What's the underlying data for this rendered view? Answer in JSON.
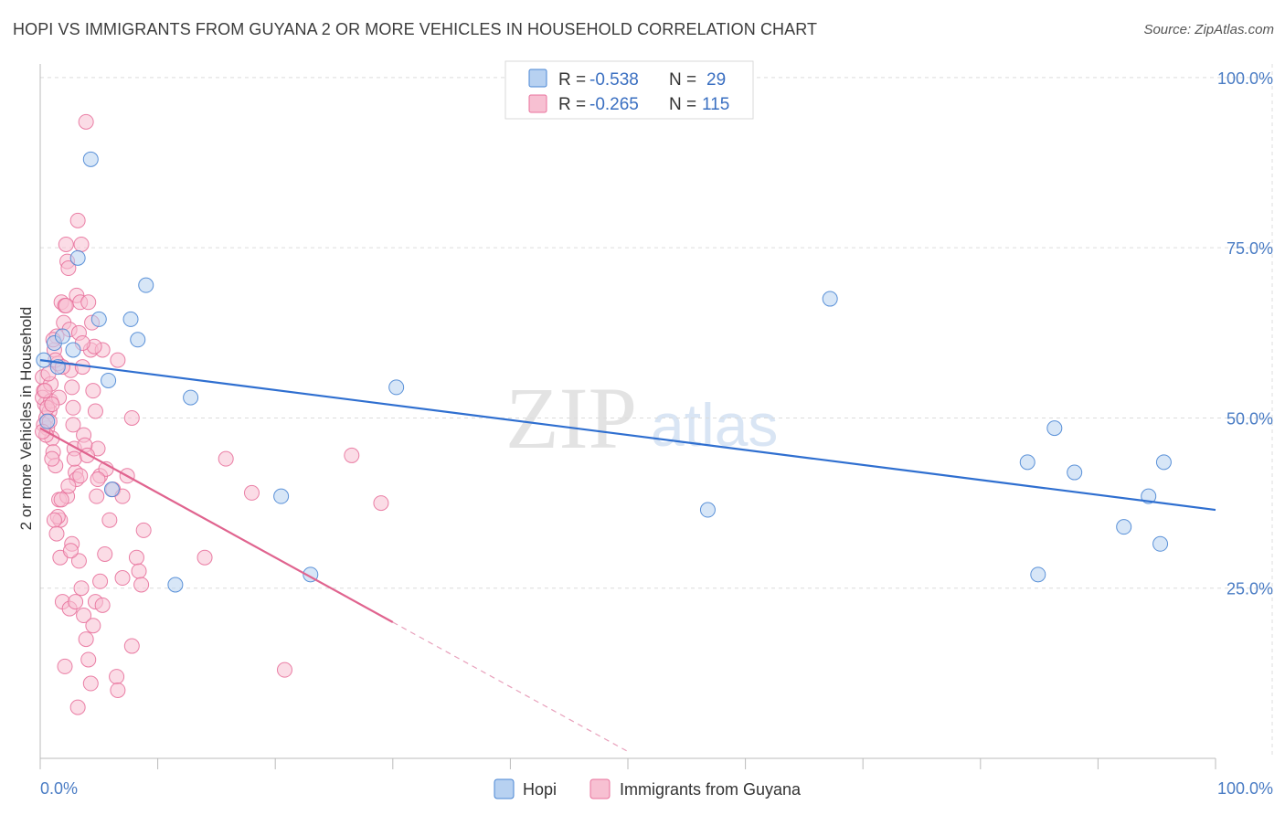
{
  "title": "HOPI VS IMMIGRANTS FROM GUYANA 2 OR MORE VEHICLES IN HOUSEHOLD CORRELATION CHART",
  "source": "Source: ZipAtlas.com",
  "watermark": {
    "zip": "ZIP",
    "atlas": "atlas"
  },
  "chart_data": {
    "type": "scatter",
    "title": "HOPI VS IMMIGRANTS FROM GUYANA 2 OR MORE VEHICLES IN HOUSEHOLD CORRELATION CHART",
    "xlabel": "",
    "ylabel": "2 or more Vehicles in Household",
    "xlim": [
      0,
      100
    ],
    "ylim": [
      0,
      102
    ],
    "x_tick_labels": {
      "left": "0.0%",
      "right": "100.0%"
    },
    "y_ticks": [
      {
        "value": 25,
        "label": "25.0%"
      },
      {
        "value": 50,
        "label": "50.0%"
      },
      {
        "value": 75,
        "label": "75.0%"
      },
      {
        "value": 100,
        "label": "100.0%"
      }
    ],
    "grid": true,
    "legend": {
      "position": "top-center",
      "entries": [
        {
          "r_label": "R =",
          "r": "-0.538",
          "n_label": "N =",
          "n": "29"
        },
        {
          "r_label": "R =",
          "r": "-0.265",
          "n_label": "N =",
          "n": "115"
        }
      ]
    },
    "series": [
      {
        "name": "Hopi",
        "color": "#4a86d4",
        "fill": "#b7d1f1",
        "points": [
          [
            0.3,
            58.5
          ],
          [
            1.2,
            61
          ],
          [
            1.5,
            57.5
          ],
          [
            2.8,
            60
          ],
          [
            3.2,
            73.5
          ],
          [
            4.3,
            88
          ],
          [
            5.0,
            64.5
          ],
          [
            5.8,
            55.5
          ],
          [
            6.1,
            39.5
          ],
          [
            7.7,
            64.5
          ],
          [
            8.3,
            61.5
          ],
          [
            9.0,
            69.5
          ],
          [
            11.5,
            25.5
          ],
          [
            12.8,
            53
          ],
          [
            20.5,
            38.5
          ],
          [
            23.0,
            27
          ],
          [
            30.3,
            54.5
          ],
          [
            56.8,
            36.5
          ],
          [
            67.2,
            67.5
          ],
          [
            84.0,
            43.5
          ],
          [
            84.9,
            27
          ],
          [
            86.3,
            48.5
          ],
          [
            88.0,
            42
          ],
          [
            92.2,
            34
          ],
          [
            94.3,
            38.5
          ],
          [
            95.3,
            31.5
          ],
          [
            95.6,
            43.5
          ],
          [
            1.9,
            62
          ],
          [
            0.6,
            49.5
          ]
        ],
        "trend": {
          "x0": 0,
          "y0": 58.5,
          "x1": 100,
          "y1": 36.5
        }
      },
      {
        "name": "Immigrants from Guyana",
        "color": "#e8729c",
        "fill": "#f7c0d2",
        "points": [
          [
            0.2,
            56
          ],
          [
            0.3,
            54
          ],
          [
            0.4,
            52
          ],
          [
            0.5,
            50
          ],
          [
            0.6,
            48.5
          ],
          [
            0.2,
            53
          ],
          [
            0.8,
            51
          ],
          [
            0.9,
            55
          ],
          [
            1.0,
            47
          ],
          [
            1.1,
            45
          ],
          [
            1.2,
            60
          ],
          [
            1.3,
            43
          ],
          [
            1.4,
            62
          ],
          [
            1.5,
            58
          ],
          [
            1.6,
            38
          ],
          [
            1.7,
            35
          ],
          [
            1.8,
            67
          ],
          [
            2.0,
            64
          ],
          [
            2.1,
            66.5
          ],
          [
            2.2,
            75.5
          ],
          [
            2.3,
            73
          ],
          [
            2.4,
            72
          ],
          [
            2.5,
            63
          ],
          [
            2.6,
            57
          ],
          [
            2.7,
            54.5
          ],
          [
            2.8,
            49
          ],
          [
            2.9,
            45.5
          ],
          [
            3.0,
            42
          ],
          [
            3.1,
            68
          ],
          [
            3.2,
            79
          ],
          [
            3.3,
            62.5
          ],
          [
            3.4,
            67
          ],
          [
            3.5,
            75.5
          ],
          [
            3.6,
            57.5
          ],
          [
            3.7,
            47.5
          ],
          [
            3.9,
            93.5
          ],
          [
            4.1,
            67
          ],
          [
            4.3,
            60
          ],
          [
            4.5,
            54
          ],
          [
            4.7,
            51
          ],
          [
            4.9,
            45.5
          ],
          [
            5.1,
            41.5
          ],
          [
            5.3,
            60
          ],
          [
            5.6,
            42.5
          ],
          [
            5.9,
            35
          ],
          [
            6.2,
            39.5
          ],
          [
            6.6,
            58.5
          ],
          [
            7.0,
            38.5
          ],
          [
            7.4,
            41.5
          ],
          [
            7.8,
            50
          ],
          [
            8.2,
            29.5
          ],
          [
            8.4,
            27.5
          ],
          [
            8.6,
            25.5
          ],
          [
            8.8,
            33.5
          ],
          [
            0.3,
            49
          ],
          [
            0.5,
            47.5
          ],
          [
            0.7,
            56.5
          ],
          [
            0.9,
            52.5
          ],
          [
            1.1,
            61.5
          ],
          [
            1.3,
            58.5
          ],
          [
            1.5,
            35.5
          ],
          [
            1.7,
            29.5
          ],
          [
            1.9,
            23
          ],
          [
            2.1,
            13.5
          ],
          [
            2.3,
            38.5
          ],
          [
            2.5,
            22
          ],
          [
            2.7,
            31.5
          ],
          [
            2.9,
            44
          ],
          [
            3.1,
            41
          ],
          [
            3.3,
            29
          ],
          [
            3.5,
            25
          ],
          [
            3.7,
            21
          ],
          [
            3.9,
            17.5
          ],
          [
            4.1,
            14.5
          ],
          [
            4.3,
            11
          ],
          [
            4.5,
            19.5
          ],
          [
            4.7,
            23
          ],
          [
            4.9,
            41
          ],
          [
            5.1,
            26
          ],
          [
            5.3,
            22.5
          ],
          [
            5.5,
            30
          ],
          [
            6.5,
            12
          ],
          [
            6.6,
            10
          ],
          [
            7.0,
            26.5
          ],
          [
            7.8,
            16.5
          ],
          [
            15.8,
            44
          ],
          [
            18.0,
            39
          ],
          [
            14.0,
            29.5
          ],
          [
            20.8,
            13
          ],
          [
            26.5,
            44.5
          ],
          [
            29.0,
            37.5
          ],
          [
            0.4,
            54
          ],
          [
            0.6,
            51.5
          ],
          [
            0.8,
            49.5
          ],
          [
            1.0,
            44
          ],
          [
            1.2,
            35
          ],
          [
            1.4,
            33
          ],
          [
            0.2,
            48
          ],
          [
            1.8,
            38
          ],
          [
            2.2,
            66.5
          ],
          [
            2.6,
            30.5
          ],
          [
            3.0,
            23
          ],
          [
            3.2,
            7.5
          ],
          [
            3.4,
            41.5
          ],
          [
            3.8,
            46
          ],
          [
            4.4,
            64
          ],
          [
            4.6,
            60.5
          ],
          [
            1.6,
            53
          ],
          [
            1.0,
            52
          ],
          [
            3.6,
            61
          ],
          [
            1.9,
            57.5
          ],
          [
            2.4,
            40
          ],
          [
            4.0,
            44.5
          ],
          [
            4.8,
            38.5
          ],
          [
            2.8,
            51.5
          ]
        ],
        "trend": {
          "x0": 0,
          "y0": 48.5,
          "x1": 30,
          "y1": 20
        },
        "trend_dashed": {
          "x0": 30,
          "y0": 20,
          "x1": 50,
          "y1": 1
        }
      }
    ]
  }
}
